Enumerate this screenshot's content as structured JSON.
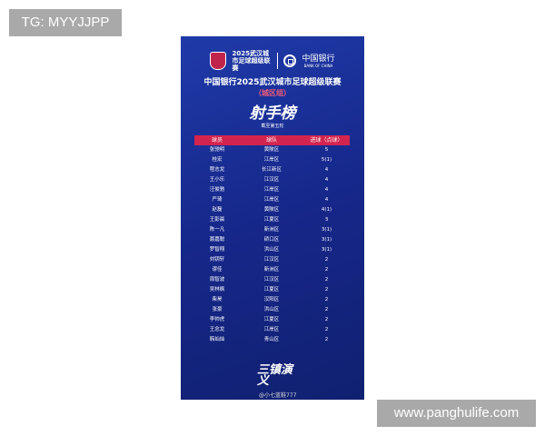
{
  "watermarks": {
    "tg": "TG: MYYJJPP",
    "site": "www.panghulife.com"
  },
  "poster": {
    "league_logo_text": "2025武汉城市足球超级联赛",
    "sponsor_cn": "中国银行",
    "sponsor_en": "BANK OF CHINA",
    "title": "中国银行2025武汉城市足球超级联赛",
    "group": "（城区组）",
    "heading": "射手榜",
    "subtitle": "截至第五轮",
    "columns": [
      "球员",
      "球队",
      "进球（点球）"
    ],
    "rows": [
      [
        "张驰明",
        "黄陂区",
        "5"
      ],
      [
        "桂宏",
        "江岸区",
        "5(1)"
      ],
      [
        "程志龙",
        "长江新区",
        "4"
      ],
      [
        "王小乐",
        "江汉区",
        "4"
      ],
      [
        "汪俊驰",
        "江岸区",
        "4"
      ],
      [
        "严琦",
        "江岸区",
        "4"
      ],
      [
        "赵磊",
        "黄陂区",
        "4(1)"
      ],
      [
        "王彭晨",
        "江夏区",
        "3"
      ],
      [
        "陈一凡",
        "新洲区",
        "3(1)"
      ],
      [
        "聂嘉聪",
        "硚口区",
        "3(1)"
      ],
      [
        "罗智翔",
        "洪山区",
        "3(1)"
      ],
      [
        "刘钥轩",
        "江汉区",
        "2"
      ],
      [
        "谬佳",
        "新洲区",
        "2"
      ],
      [
        "周智波",
        "江汉区",
        "2"
      ],
      [
        "吴林枫",
        "江夏区",
        "2"
      ],
      [
        "柴昊",
        "汉阳区",
        "2"
      ],
      [
        "张豪",
        "洪山区",
        "2"
      ],
      [
        "李帅虎",
        "江夏区",
        "2"
      ],
      [
        "王念龙",
        "江岸区",
        "2"
      ],
      [
        "韩灿灿",
        "青山区",
        "2"
      ]
    ],
    "slogan": "三镇演义",
    "credit": "@小七蓝鞋777"
  }
}
